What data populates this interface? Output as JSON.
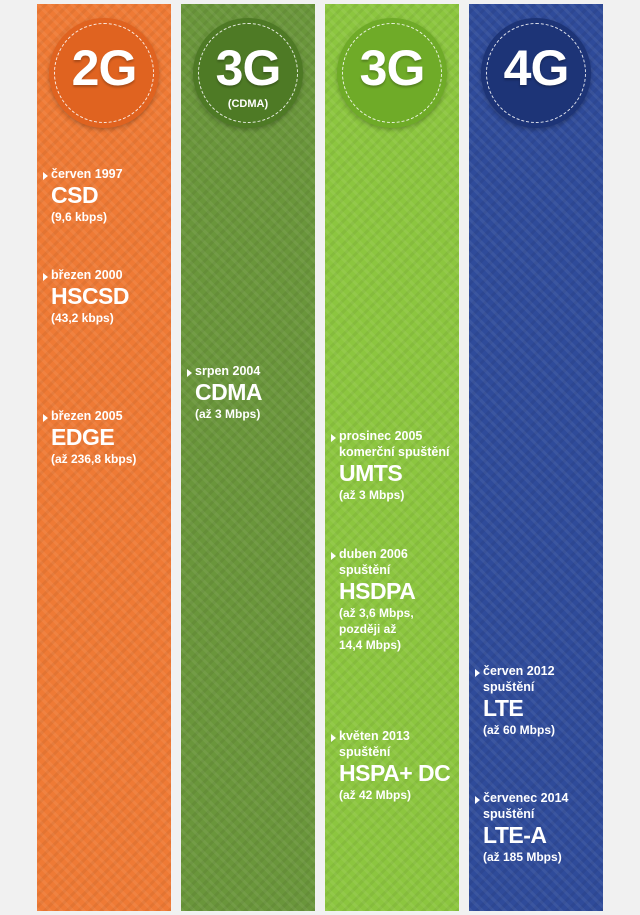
{
  "colors": {
    "col_2g": "#ef7a35",
    "col_3g_cdma": "#6a963b",
    "col_3g": "#8cc63f",
    "col_4g": "#2f4b9a",
    "badge_2g": "#e06320",
    "badge_3g_cdma": "#4e7a25",
    "badge_3g": "#6fab28",
    "badge_4g": "#1d3477"
  },
  "columns": [
    {
      "title": "2G",
      "subtitle": "",
      "entries": [
        {
          "date": "červen 1997",
          "line2": "",
          "name": "CSD",
          "speed": "(9,6 kbps)"
        },
        {
          "date": "březen 2000",
          "line2": "",
          "name": "HSCSD",
          "speed": "(43,2 kbps)"
        },
        {
          "date": "březen 2005",
          "line2": "",
          "name": "EDGE",
          "speed": "(až 236,8 kbps)"
        }
      ]
    },
    {
      "title": "3G",
      "subtitle": "(CDMA)",
      "entries": [
        {
          "date": "srpen 2004",
          "line2": "",
          "name": "CDMA",
          "speed": "(až 3 Mbps)"
        }
      ]
    },
    {
      "title": "3G",
      "subtitle": "",
      "entries": [
        {
          "date": "prosinec 2005",
          "line2": "komerční spuštění",
          "name": "UMTS",
          "speed": "(až 3 Mbps)"
        },
        {
          "date": "duben 2006",
          "line2": "spuštění",
          "name": "HSDPA",
          "speed": "(až 3,6 Mbps,",
          "speed2": "později až",
          "speed3": "14,4 Mbps)"
        },
        {
          "date": "květen 2013",
          "line2": "spuštění",
          "name": "HSPA+ DC",
          "speed": "(až 42 Mbps)"
        }
      ]
    },
    {
      "title": "4G",
      "subtitle": "",
      "entries": [
        {
          "date": "červen 2012",
          "line2": "spuštění",
          "name": "LTE",
          "speed": "(až 60 Mbps)"
        },
        {
          "date": "červenec 2014",
          "line2": "spuštění",
          "name": "LTE-A",
          "speed": "(až 185 Mbps)"
        }
      ]
    }
  ]
}
